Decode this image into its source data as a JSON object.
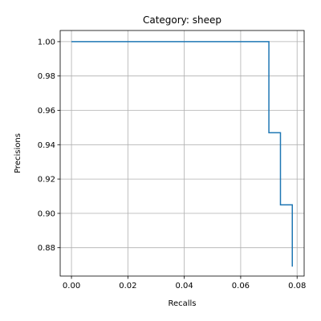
{
  "chart_data": {
    "type": "line",
    "title": "Category: sheep",
    "xlabel": "Recalls",
    "ylabel": "Precisions",
    "xlim": [
      -0.004,
      0.0825
    ],
    "ylim": [
      0.8635,
      1.0065
    ],
    "xticks": [
      0.0,
      0.02,
      0.04,
      0.06,
      0.08
    ],
    "xtick_labels": [
      "0.00",
      "0.02",
      "0.04",
      "0.06",
      "0.08"
    ],
    "yticks": [
      0.88,
      0.9,
      0.92,
      0.94,
      0.96,
      0.98,
      1.0
    ],
    "ytick_labels": [
      "0.88",
      "0.90",
      "0.92",
      "0.94",
      "0.96",
      "0.98",
      "1.00"
    ],
    "grid": true,
    "series": [
      {
        "color": "#1f77b4",
        "step": true,
        "x": [
          0.0,
          0.07,
          0.07,
          0.0741,
          0.0741,
          0.0783,
          0.0783
        ],
        "y": [
          1.0,
          1.0,
          0.947,
          0.947,
          0.905,
          0.905,
          0.869
        ]
      }
    ]
  }
}
